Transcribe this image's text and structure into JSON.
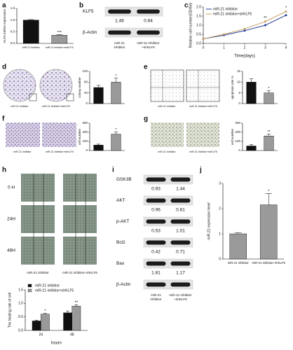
{
  "panel_labels": [
    "a",
    "b",
    "c",
    "d",
    "e",
    "f",
    "g",
    "h",
    "i",
    "j"
  ],
  "blot_b": {
    "rows": [
      {
        "label": "KLF5",
        "values": [
          1.46,
          0.64
        ]
      },
      {
        "label": "β-Actin"
      }
    ],
    "lanes": [
      [
        "miR-21",
        "inhibitor"
      ],
      [
        "miR-21 inhibitor",
        "+shKLF5"
      ]
    ]
  },
  "images": {
    "d": [
      "miR-21 inhibitor",
      "miR-21 inhibitor+shKLF5"
    ],
    "e": [
      "miR-21 inhibitor",
      "miR-21 inhibitor+shKLF5"
    ],
    "f": [
      "miR-21 inhibitor",
      "miR-21 inhibitor+shKLF5"
    ],
    "g": [
      "miR-21 inhibitor",
      "miR-21 inhibitor+shKLF5"
    ]
  },
  "wound": {
    "rows": [
      "0 H",
      "24H",
      "48H"
    ],
    "lanes": [
      "miR-21 inhibitor",
      "miR-21 inhibitor+shKLF5"
    ]
  },
  "blot_i": {
    "rows": [
      {
        "label": "GSK3B",
        "values": [
          0.93,
          1.44
        ]
      },
      {
        "label": "AKT",
        "values": [
          0.96,
          0.81
        ]
      },
      {
        "label": "p-AKT",
        "values": [
          0.53,
          1.01
        ]
      },
      {
        "label": "Bcl2",
        "values": [
          0.42,
          0.71
        ]
      },
      {
        "label": "Bax",
        "values": [
          1.81,
          1.17
        ]
      },
      {
        "label": "β-Actin"
      }
    ],
    "lanes": [
      [
        "miR-21",
        "inhibitor"
      ],
      [
        "miR-21 inhibitor",
        "+shKLF5"
      ]
    ]
  },
  "chart_data": [
    {
      "type": "bar",
      "y_label": "KLF5 mRNA expression",
      "categories": [
        "miR-21 inhibitor",
        "miR-21 inhibitor+shKLF5"
      ],
      "values": [
        1.0,
        0.35
      ],
      "errors": [
        0.02,
        0.03
      ],
      "colors": [
        "#111111",
        "#9a9a9a"
      ],
      "annotations": [
        "***"
      ],
      "ylim": [
        0,
        1.5
      ],
      "yticks": [
        {
          "value": 0,
          "label": "0.0"
        },
        0.5,
        {
          "value": 1,
          "label": "1.0"
        },
        1.5
      ]
    },
    {
      "type": "line",
      "y_label": "Relative cell number(OD450)",
      "x_label": "Time(days)",
      "x": [
        0,
        1,
        2,
        3,
        4
      ],
      "series": [
        {
          "name": "miR-21 inhibitor",
          "color": "#1f3a93",
          "values": [
            0.25,
            0.45,
            0.7,
            1.0,
            1.55
          ]
        },
        {
          "name": "miR-21 inhibitor+shKLF5",
          "color": "#c8a165",
          "values": [
            0.25,
            0.5,
            0.8,
            1.2,
            1.75
          ]
        }
      ],
      "annotations": [
        "**",
        "*"
      ],
      "xlim": [
        0,
        4
      ],
      "xticks": [
        0,
        1,
        2,
        3,
        4
      ],
      "ylim": [
        0,
        2
      ],
      "yticks": [
        {
          "value": 0,
          "label": "0.0"
        },
        0.5,
        {
          "value": 1,
          "label": "1.0"
        },
        1.5,
        {
          "value": 2,
          "label": "2.0"
        }
      ]
    },
    {
      "type": "bar",
      "y_label": "colony number",
      "values": [
        60,
        80
      ],
      "errors": [
        8,
        15
      ],
      "colors": [
        "#111111",
        "#9a9a9a"
      ],
      "annotations": [
        "*"
      ],
      "ylim": [
        0,
        120
      ],
      "yticks": [
        0,
        40,
        80,
        120
      ]
    },
    {
      "type": "bar",
      "y_label": "apoptosis rate %",
      "values": [
        10,
        5
      ],
      "errors": [
        1.5,
        1
      ],
      "colors": [
        "#111111",
        "#9a9a9a"
      ],
      "annotations": [
        "*"
      ],
      "ylim": [
        0,
        15
      ],
      "yticks": [
        0,
        5,
        10,
        15
      ]
    },
    {
      "type": "bar",
      "y_label": "cell number",
      "values": [
        60,
        180
      ],
      "errors": [
        10,
        25
      ],
      "colors": [
        "#111111",
        "#9a9a9a"
      ],
      "annotations": [
        "*"
      ],
      "ylim": [
        0,
        300
      ],
      "yticks": [
        0,
        100,
        200,
        300
      ]
    },
    {
      "type": "bar",
      "y_label": "cell number",
      "values": [
        50,
        160
      ],
      "errors": [
        15,
        20
      ],
      "colors": [
        "#111111",
        "#9a9a9a"
      ],
      "annotations": [
        "**"
      ],
      "ylim": [
        0,
        300
      ],
      "yticks": [
        0,
        100,
        200,
        300
      ]
    },
    {
      "type": "bar",
      "y_label": "The healing rate of cell",
      "x_label": "hours",
      "categories": [
        "24",
        "48"
      ],
      "series": [
        {
          "name": "miR-21 inhibitor",
          "color": "#111111",
          "values": [
            0.35,
            0.65
          ],
          "errors": [
            0.03,
            0.07
          ]
        },
        {
          "name": "miR-21 inhibitor+shKLF5",
          "color": "#9a9a9a",
          "values": [
            0.6,
            0.9
          ],
          "errors": [
            0.03,
            0.05
          ]
        }
      ],
      "annotations": [
        "*",
        "**"
      ],
      "ylim": [
        0,
        1.5
      ],
      "yticks": [
        {
          "value": 0,
          "label": "0.0"
        },
        0.5,
        {
          "value": 1,
          "label": "1.0"
        },
        1.5
      ]
    },
    {
      "type": "bar",
      "y_label": "miR-21 expression level",
      "categories": [
        "miR-21 inhibitor",
        "miR-21 inhibitor+shKLF5"
      ],
      "values": [
        1.0,
        2.15
      ],
      "errors": [
        0.05,
        0.45
      ],
      "colors": [
        "#9a9a9a",
        "#9a9a9a"
      ],
      "annotations": [
        "*"
      ],
      "ylim": [
        0,
        3
      ],
      "yticks": [
        0,
        1,
        2,
        3
      ]
    }
  ]
}
